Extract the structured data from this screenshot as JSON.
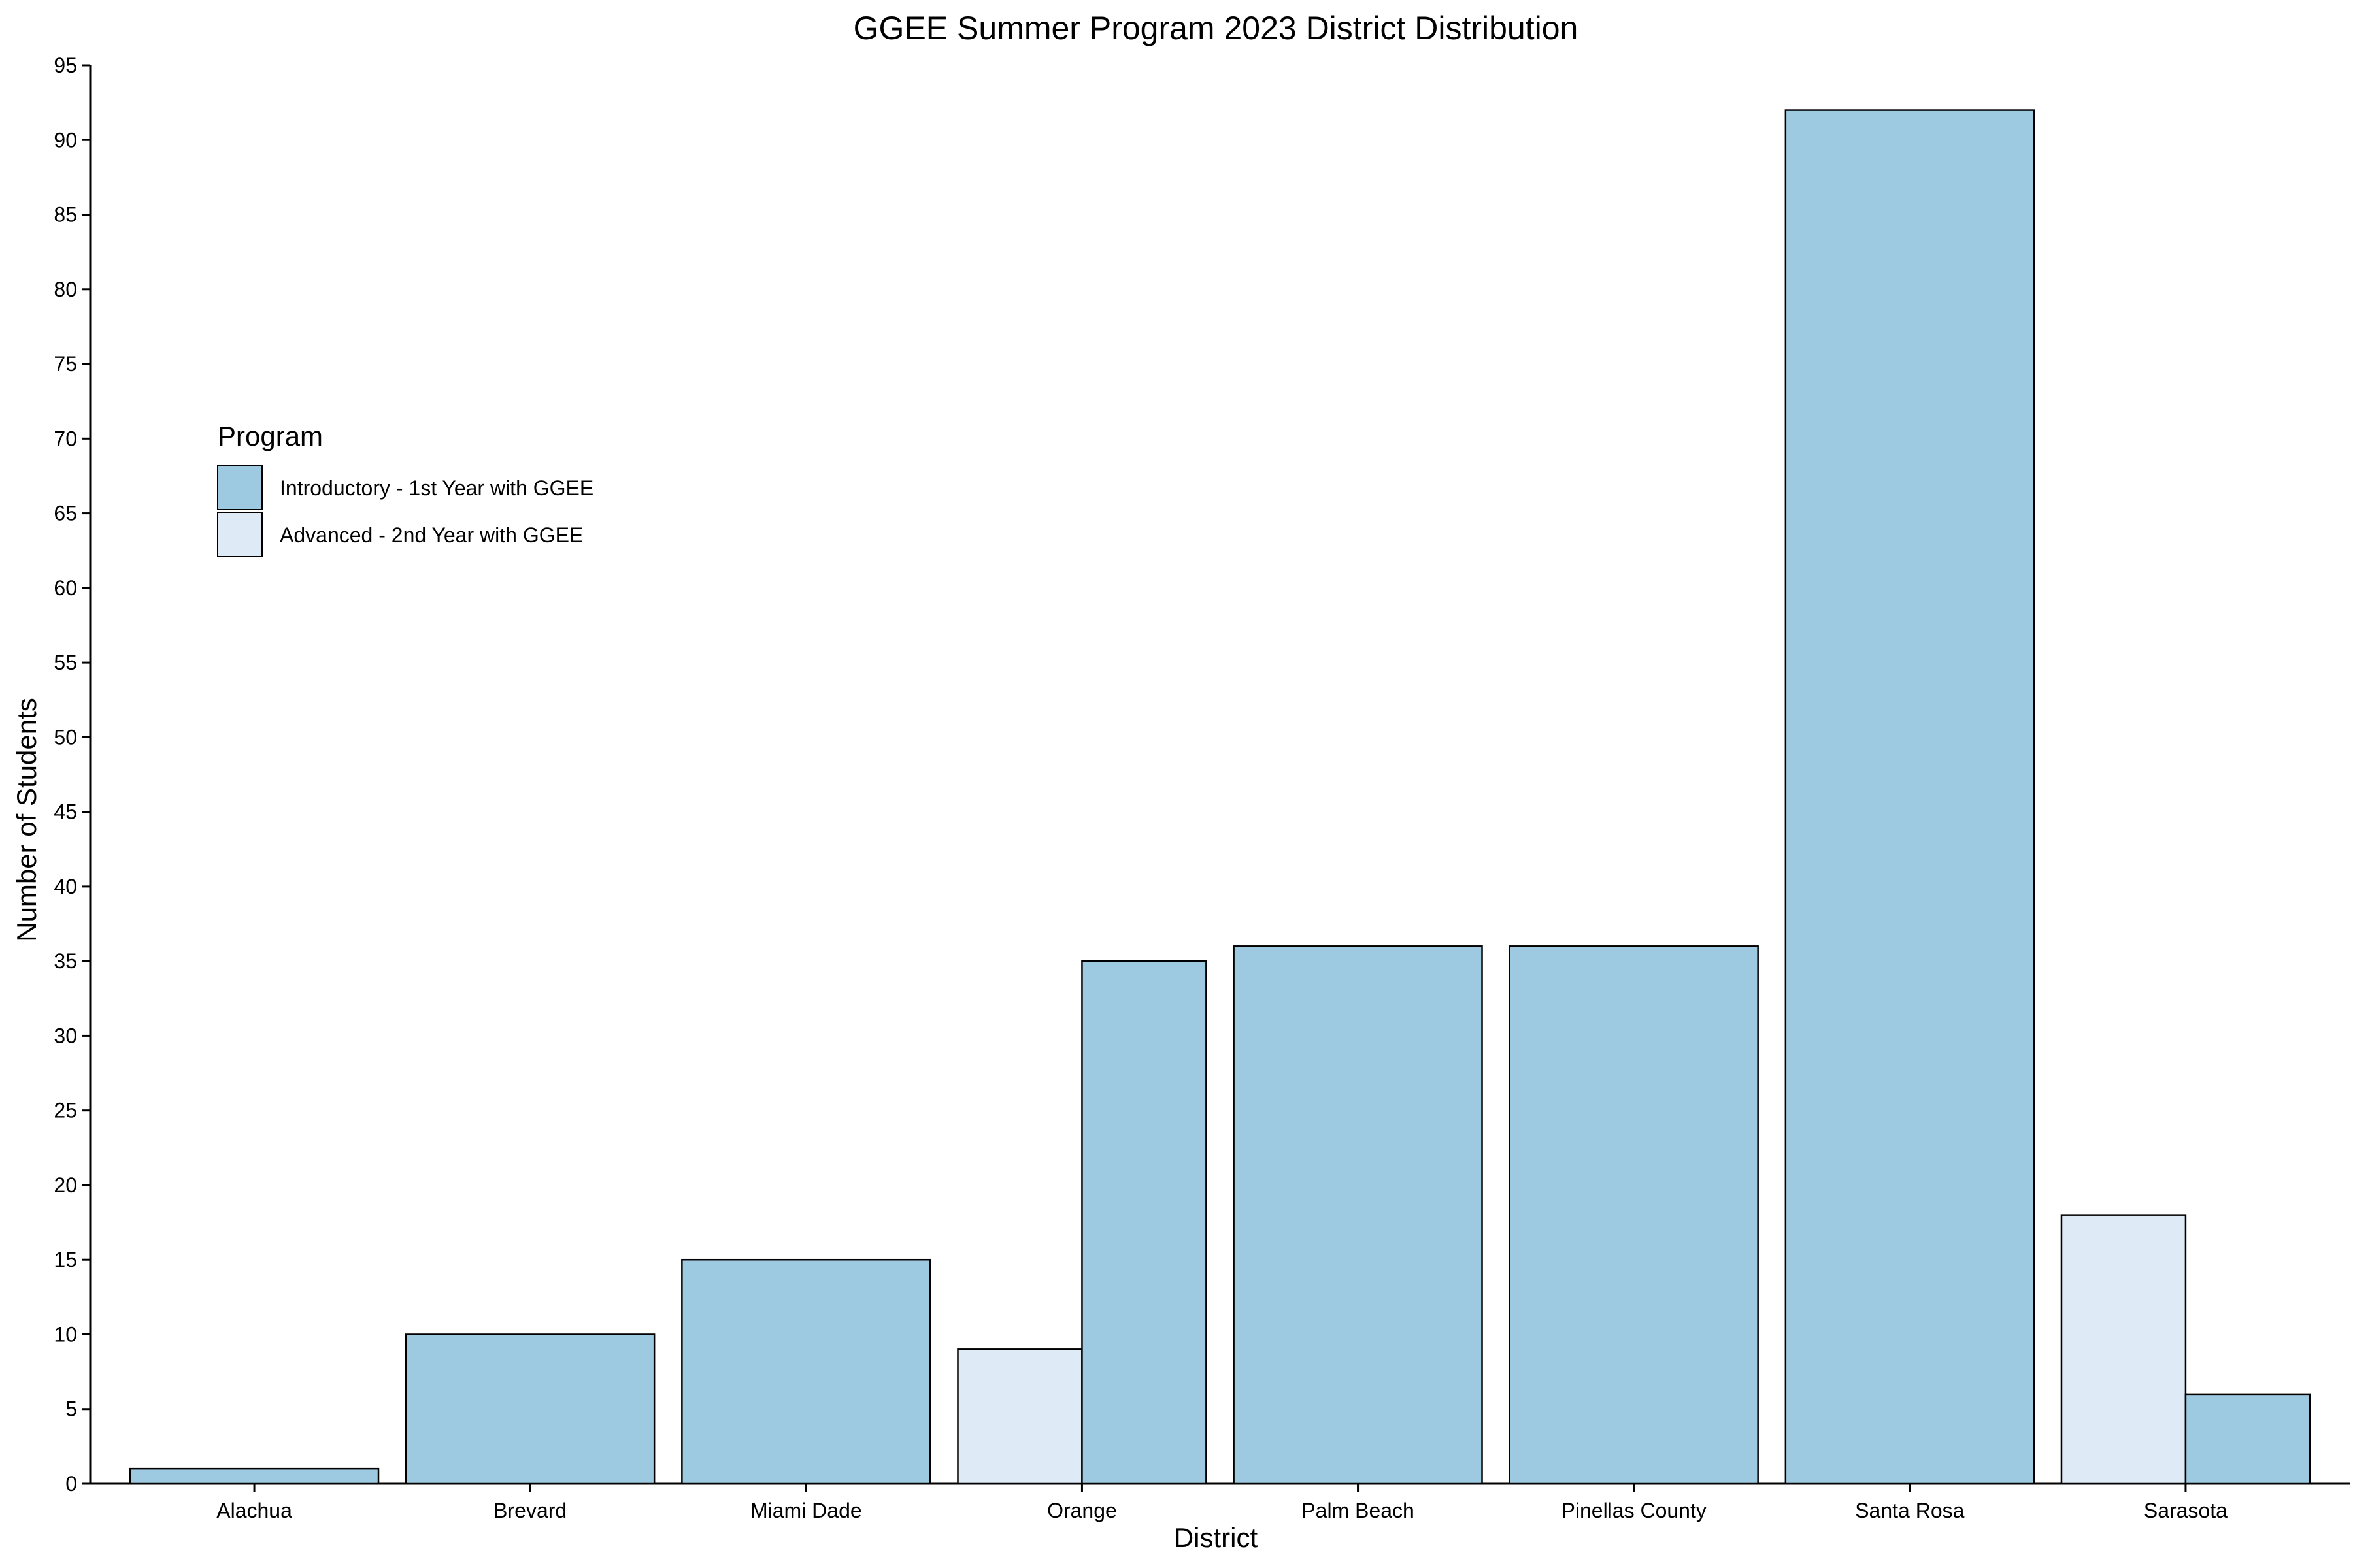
{
  "chart_data": {
    "type": "bar",
    "title": "GGEE Summer Program 2023 District Distribution",
    "xlabel": "District",
    "ylabel": "Number of Students",
    "categories": [
      "Alachua",
      "Brevard",
      "Miami Dade",
      "Orange",
      "Palm Beach",
      "Pinellas County",
      "Santa Rosa",
      "Sarasota"
    ],
    "series": [
      {
        "name": "Introductory - 1st Year with GGEE",
        "color": "#9ecae1",
        "values": [
          1,
          10,
          15,
          35,
          36,
          36,
          92,
          6
        ]
      },
      {
        "name": "Advanced - 2nd Year with GGEE",
        "color": "#deebf7",
        "values": [
          null,
          null,
          null,
          9,
          null,
          null,
          null,
          18
        ]
      }
    ],
    "ylim": [
      0,
      95
    ],
    "yticks": [
      0,
      5,
      10,
      15,
      20,
      25,
      30,
      35,
      40,
      45,
      50,
      55,
      60,
      65,
      70,
      75,
      80,
      85,
      90,
      95
    ],
    "grid": false,
    "legend": {
      "title": "Program",
      "placement": "upper-left"
    }
  }
}
